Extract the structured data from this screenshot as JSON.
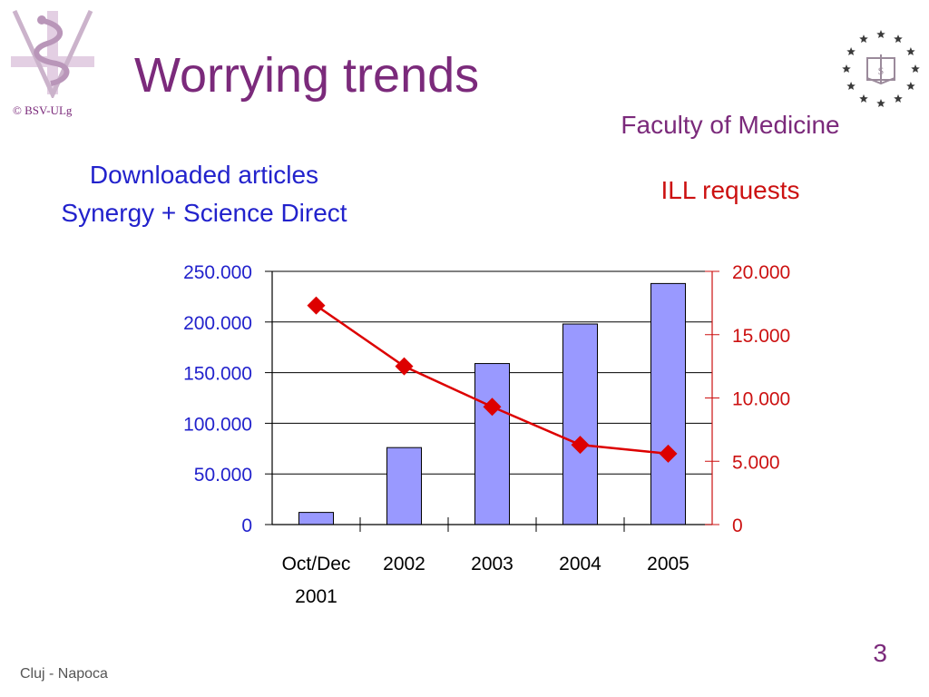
{
  "slide": {
    "title": "Worrying trends",
    "subtitle": "Faculty of Medicine",
    "copyright": "© BSV-ULg",
    "footer_text": "Cluj - Napoca",
    "page_number": "3"
  },
  "chart_data": {
    "type": "bar",
    "categories": [
      "Oct/Dec 2001",
      "2002",
      "2003",
      "2004",
      "2005"
    ],
    "series": [
      {
        "name": "Downloaded articles\nSynergy + Science Direct",
        "type": "bar",
        "axis": "left",
        "color": "#9999ff",
        "values": [
          12000,
          76000,
          159000,
          198000,
          238000
        ]
      },
      {
        "name": "ILL requests",
        "type": "line",
        "axis": "right",
        "color": "#dd0000",
        "values": [
          17300,
          12500,
          9300,
          6300,
          5600
        ]
      }
    ],
    "left_axis": {
      "range": [
        0,
        250000
      ],
      "ticks": [
        "0",
        "50.000",
        "100.000",
        "150.000",
        "200.000",
        "250.000"
      ],
      "color": "#2222cc"
    },
    "right_axis": {
      "range": [
        0,
        20000
      ],
      "ticks": [
        "0",
        "5.000",
        "10.000",
        "15.000",
        "20.000"
      ],
      "color": "#cc1111"
    },
    "grid": true,
    "legend": "none"
  }
}
